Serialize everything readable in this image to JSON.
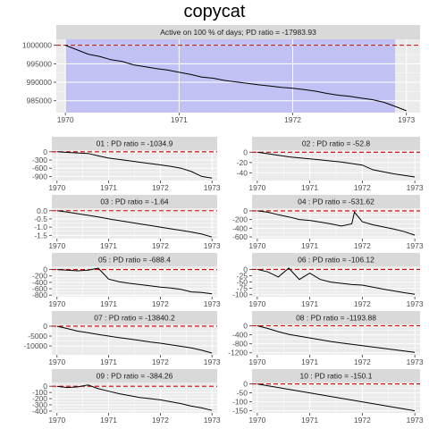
{
  "title": "copycat",
  "colors": {
    "panel_bg": "#ebebeb",
    "strip_bg": "#d9d9d9",
    "grid": "#ffffff",
    "line": "#000000",
    "ref_line": "#cc0000",
    "active_fill": "#bdbdf5"
  },
  "chart_data": [
    {
      "type": "line",
      "strip": "Active on 100 % of days; PD ratio =  -17983.93",
      "active_band": {
        "from": 1970.0,
        "to": 1972.9
      },
      "xlim": [
        1969.92,
        1973.12
      ],
      "ylim": [
        981800,
        1001600
      ],
      "x_ticks": [
        1970,
        1971,
        1972,
        1973
      ],
      "x_tick_labels": [
        "1970",
        "1971",
        "1972",
        "1973"
      ],
      "y_ticks": [
        985000,
        990000,
        995000,
        1000000
      ],
      "y_tick_labels": [
        "985000",
        "990000",
        "995000",
        "1000000"
      ],
      "reference_y": 1000000,
      "x": [
        1970.0,
        1970.1,
        1970.2,
        1970.3,
        1970.4,
        1970.5,
        1970.6,
        1970.7,
        1970.8,
        1970.9,
        1971.0,
        1971.1,
        1971.2,
        1971.3,
        1971.4,
        1971.5,
        1971.6,
        1971.7,
        1971.8,
        1971.9,
        1972.0,
        1972.1,
        1972.2,
        1972.3,
        1972.4,
        1972.5,
        1972.6,
        1972.7,
        1972.8,
        1972.9,
        1973.0
      ],
      "y": [
        1000000,
        998800,
        997600,
        997000,
        996100,
        995600,
        994700,
        994200,
        993700,
        993300,
        992700,
        992100,
        991400,
        991100,
        990500,
        990100,
        989700,
        989300,
        989000,
        988600,
        988400,
        988000,
        987600,
        987000,
        986500,
        986200,
        985700,
        985300,
        984600,
        983500,
        982300
      ]
    },
    {
      "type": "line",
      "strip": "01 : PD ratio =  -1034.9",
      "xlim": [
        1969.9,
        1973.1
      ],
      "ylim": [
        -1050,
        60
      ],
      "x_ticks": [
        1970,
        1971,
        1972,
        1973
      ],
      "x_tick_labels": [
        "1970",
        "1971",
        "1972",
        "1973"
      ],
      "y_ticks": [
        -900,
        -600,
        -300,
        0
      ],
      "y_tick_labels": [
        "-900",
        "-600",
        "-300",
        "0"
      ],
      "reference_y": 0,
      "x": [
        1970.0,
        1970.2,
        1970.4,
        1970.6,
        1970.8,
        1971.0,
        1971.2,
        1971.4,
        1971.6,
        1971.8,
        1972.0,
        1972.2,
        1972.4,
        1972.6,
        1972.8,
        1973.0
      ],
      "y": [
        0,
        -20,
        -40,
        -60,
        -150,
        -230,
        -280,
        -330,
        -380,
        -430,
        -480,
        -530,
        -600,
        -720,
        -900,
        -960
      ]
    },
    {
      "type": "line",
      "strip": "02 : PD ratio =  -52.8",
      "xlim": [
        1969.9,
        1973.1
      ],
      "ylim": [
        -55,
        4
      ],
      "x_ticks": [
        1970,
        1971,
        1972,
        1973
      ],
      "x_tick_labels": [
        "1970",
        "1971",
        "1972",
        "1973"
      ],
      "y_ticks": [
        -40,
        -20,
        0
      ],
      "y_tick_labels": [
        "-40",
        "-20",
        "0"
      ],
      "reference_y": 0,
      "x": [
        1970.0,
        1970.2,
        1970.4,
        1970.6,
        1970.8,
        1971.0,
        1971.2,
        1971.4,
        1971.6,
        1971.8,
        1972.0,
        1972.2,
        1972.4,
        1972.6,
        1972.8,
        1973.0
      ],
      "y": [
        0,
        -3,
        -6,
        -9,
        -11,
        -13,
        -15,
        -17,
        -19,
        -22,
        -25,
        -34,
        -38,
        -42,
        -45,
        -48
      ]
    },
    {
      "type": "line",
      "strip": "03 : PD ratio =  -1.64",
      "xlim": [
        1969.9,
        1973.1
      ],
      "ylim": [
        -1.7,
        0.15
      ],
      "x_ticks": [
        1970,
        1971,
        1972,
        1973
      ],
      "x_tick_labels": [
        "1970",
        "1971",
        "1972",
        "1973"
      ],
      "y_ticks": [
        -1.5,
        -1.0,
        -0.5,
        0.0
      ],
      "y_tick_labels": [
        "-1.5",
        "-1.0",
        "-0.5",
        "0.0"
      ],
      "reference_y": 0,
      "x": [
        1970.0,
        1970.2,
        1970.4,
        1970.6,
        1970.8,
        1971.0,
        1971.2,
        1971.4,
        1971.6,
        1971.8,
        1972.0,
        1972.2,
        1972.4,
        1972.6,
        1972.8,
        1973.0
      ],
      "y": [
        0,
        -0.08,
        -0.18,
        -0.28,
        -0.38,
        -0.5,
        -0.6,
        -0.7,
        -0.8,
        -0.9,
        -1.0,
        -1.1,
        -1.2,
        -1.3,
        -1.42,
        -1.6
      ]
    },
    {
      "type": "line",
      "strip": "04 : PD ratio =  -531.62",
      "xlim": [
        1969.9,
        1973.1
      ],
      "ylim": [
        -640,
        60
      ],
      "x_ticks": [
        1970,
        1971,
        1972,
        1973
      ],
      "x_tick_labels": [
        "1970",
        "1971",
        "1972",
        "1973"
      ],
      "y_ticks": [
        -600,
        -400,
        -200,
        0
      ],
      "y_tick_labels": [
        "-600",
        "-400",
        "-200",
        "0"
      ],
      "reference_y": 0,
      "x": [
        1970.0,
        1970.2,
        1970.4,
        1970.6,
        1970.8,
        1971.0,
        1971.2,
        1971.4,
        1971.6,
        1971.8,
        1971.85,
        1972.0,
        1972.2,
        1972.4,
        1972.6,
        1972.8,
        1973.0
      ],
      "y": [
        0,
        -30,
        -90,
        -140,
        -200,
        -220,
        -260,
        -300,
        -350,
        -300,
        -30,
        -250,
        -320,
        -370,
        -420,
        -480,
        -560
      ]
    },
    {
      "type": "line",
      "strip": "05 : PD ratio =  -688.4",
      "xlim": [
        1969.9,
        1973.1
      ],
      "ylim": [
        -850,
        100
      ],
      "x_ticks": [
        1970,
        1971,
        1972,
        1973
      ],
      "x_tick_labels": [
        "1970",
        "1971",
        "1972",
        "1973"
      ],
      "y_ticks": [
        -800,
        -600,
        -400,
        -200,
        0
      ],
      "y_tick_labels": [
        "-800",
        "-600",
        "-400",
        "-200",
        "0"
      ],
      "reference_y": 0,
      "x": [
        1970.0,
        1970.2,
        1970.4,
        1970.6,
        1970.8,
        1971.0,
        1971.2,
        1971.4,
        1971.6,
        1971.8,
        1972.0,
        1972.2,
        1972.4,
        1972.6,
        1972.8,
        1973.0
      ],
      "y": [
        0,
        -20,
        -40,
        -20,
        40,
        -300,
        -380,
        -430,
        -470,
        -510,
        -550,
        -580,
        -620,
        -700,
        -720,
        -760
      ]
    },
    {
      "type": "line",
      "strip": "06 : PD ratio =  -106.12",
      "xlim": [
        1969.9,
        1973.1
      ],
      "ylim": [
        -108,
        12
      ],
      "x_ticks": [
        1970,
        1971,
        1972,
        1973
      ],
      "x_tick_labels": [
        "1970",
        "1971",
        "1972",
        "1973"
      ],
      "y_ticks": [
        -100,
        -75,
        -50,
        -25,
        0
      ],
      "y_tick_labels": [
        "-100",
        "-75",
        "-50",
        "-25",
        "0"
      ],
      "reference_y": 0,
      "x": [
        1970.0,
        1970.2,
        1970.4,
        1970.6,
        1970.8,
        1971.0,
        1971.2,
        1971.4,
        1971.6,
        1971.8,
        1972.0,
        1972.2,
        1972.4,
        1972.6,
        1972.8,
        1973.0
      ],
      "y": [
        0,
        -10,
        -30,
        5,
        -40,
        -15,
        -40,
        -50,
        -55,
        -60,
        -62,
        -70,
        -78,
        -85,
        -92,
        -98
      ]
    },
    {
      "type": "line",
      "strip": "07 : PD ratio =  -13840.2",
      "xlim": [
        1969.9,
        1973.1
      ],
      "ylim": [
        -14500,
        900
      ],
      "x_ticks": [
        1970,
        1971,
        1972,
        1973
      ],
      "x_tick_labels": [
        "1970",
        "1971",
        "1972",
        "1973"
      ],
      "y_ticks": [
        -10000,
        -5000,
        0
      ],
      "y_tick_labels": [
        "-10000",
        "-5000",
        "0"
      ],
      "reference_y": 0,
      "x": [
        1970.0,
        1970.2,
        1970.4,
        1970.6,
        1970.8,
        1971.0,
        1971.2,
        1971.4,
        1971.6,
        1971.8,
        1972.0,
        1972.2,
        1972.4,
        1972.6,
        1972.8,
        1973.0
      ],
      "y": [
        0,
        -1200,
        -2500,
        -3300,
        -4200,
        -5000,
        -5800,
        -6500,
        -7200,
        -8000,
        -8600,
        -9400,
        -10200,
        -11000,
        -12200,
        -13600
      ]
    },
    {
      "type": "line",
      "strip": "08 : PD ratio =  -1193.88",
      "xlim": [
        1969.9,
        1973.1
      ],
      "ylim": [
        -1290,
        60
      ],
      "x_ticks": [
        1970,
        1971,
        1972,
        1973
      ],
      "x_tick_labels": [
        "1970",
        "1971",
        "1972",
        "1973"
      ],
      "y_ticks": [
        -1200,
        -800,
        -400,
        0
      ],
      "y_tick_labels": [
        "-1200",
        "-800",
        "-400",
        "0"
      ],
      "reference_y": 0,
      "x": [
        1970.0,
        1970.2,
        1970.4,
        1970.6,
        1970.8,
        1971.0,
        1971.2,
        1971.4,
        1971.6,
        1971.8,
        1972.0,
        1972.2,
        1972.4,
        1972.6,
        1972.8,
        1973.0
      ],
      "y": [
        0,
        -120,
        -260,
        -380,
        -460,
        -540,
        -620,
        -700,
        -760,
        -820,
        -880,
        -940,
        -1000,
        -1060,
        -1120,
        -1180
      ]
    },
    {
      "type": "line",
      "strip": "09 : PD ratio =  -384.26",
      "xlim": [
        1969.9,
        1973.1
      ],
      "ylim": [
        -430,
        60
      ],
      "x_ticks": [
        1970,
        1971,
        1972,
        1973
      ],
      "x_tick_labels": [
        "1970",
        "1971",
        "1972",
        "1973"
      ],
      "y_ticks": [
        -400,
        -300,
        -200,
        -100,
        0
      ],
      "y_tick_labels": [
        "-400",
        "-300",
        "-200",
        "-100",
        "0"
      ],
      "reference_y": 0,
      "x": [
        1970.0,
        1970.2,
        1970.4,
        1970.6,
        1970.8,
        1971.0,
        1971.2,
        1971.4,
        1971.6,
        1971.8,
        1972.0,
        1972.2,
        1972.4,
        1972.6,
        1972.8,
        1973.0
      ],
      "y": [
        0,
        -20,
        -10,
        20,
        -40,
        -80,
        -120,
        -150,
        -180,
        -200,
        -220,
        -250,
        -280,
        -320,
        -350,
        -390
      ]
    },
    {
      "type": "line",
      "strip": "10 : PD ratio =  -150.1",
      "xlim": [
        1969.9,
        1973.1
      ],
      "ylim": [
        -162,
        8
      ],
      "x_ticks": [
        1970,
        1971,
        1972,
        1973
      ],
      "x_tick_labels": [
        "1970",
        "1971",
        "1972",
        "1973"
      ],
      "y_ticks": [
        -150,
        -100,
        -50,
        0
      ],
      "y_tick_labels": [
        "-150",
        "-100",
        "-50",
        "0"
      ],
      "reference_y": 0,
      "x": [
        1970.0,
        1970.2,
        1970.4,
        1970.6,
        1970.8,
        1971.0,
        1971.2,
        1971.4,
        1971.6,
        1971.8,
        1972.0,
        1972.2,
        1972.4,
        1972.6,
        1972.8,
        1973.0
      ],
      "y": [
        0,
        -10,
        -20,
        -30,
        -40,
        -50,
        -60,
        -70,
        -80,
        -90,
        -100,
        -110,
        -120,
        -130,
        -140,
        -150
      ]
    }
  ]
}
